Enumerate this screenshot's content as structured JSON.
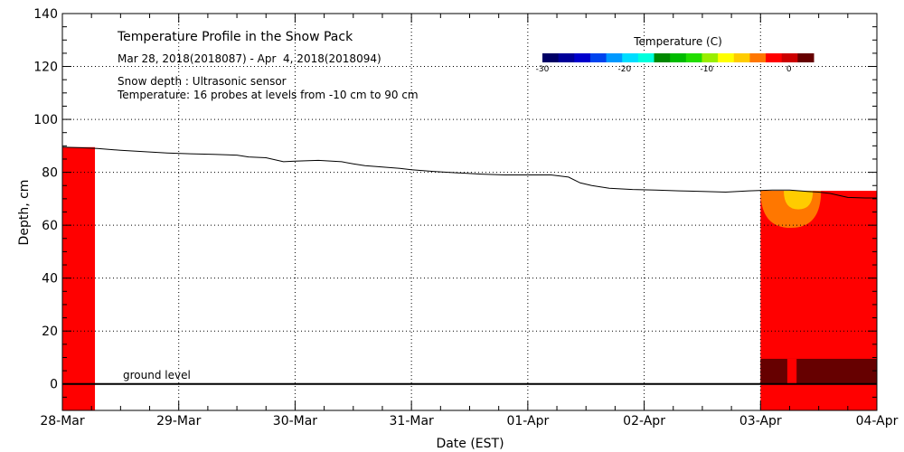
{
  "chart_data": {
    "type": "area",
    "title": "Temperature Profile in the Snow Pack",
    "subtitle": "Mar 28, 2018(2018087) - Apr  4, 2018(2018094)",
    "info_lines": [
      "Snow depth : Ultrasonic sensor",
      "Temperature: 16 probes at levels from -10 cm to 90 cm"
    ],
    "xlabel": "Date (EST)",
    "ylabel": "Depth, cm",
    "xlim": [
      0,
      7
    ],
    "ylim": [
      -10,
      140
    ],
    "x_ticks": [
      {
        "value": 0,
        "label": "28-Mar"
      },
      {
        "value": 1,
        "label": "29-Mar"
      },
      {
        "value": 2,
        "label": "30-Mar"
      },
      {
        "value": 3,
        "label": "31-Mar"
      },
      {
        "value": 4,
        "label": "01-Apr"
      },
      {
        "value": 5,
        "label": "02-Apr"
      },
      {
        "value": 6,
        "label": "03-Apr"
      },
      {
        "value": 7,
        "label": "04-Apr"
      }
    ],
    "y_ticks": [
      {
        "value": 0,
        "label": "0"
      },
      {
        "value": 20,
        "label": "20"
      },
      {
        "value": 40,
        "label": "40"
      },
      {
        "value": 60,
        "label": "60"
      },
      {
        "value": 80,
        "label": "80"
      },
      {
        "value": 100,
        "label": "100"
      },
      {
        "value": 120,
        "label": "120"
      },
      {
        "value": 140,
        "label": "140"
      }
    ],
    "grid": true,
    "ground_level": {
      "value": 0,
      "label": "ground level"
    },
    "legend": {
      "title": "Temperature (C)",
      "placement": "top-right",
      "range": [
        -30,
        3
      ],
      "ticks": [
        {
          "value": -30,
          "label": "-30"
        },
        {
          "value": -20,
          "label": "-20"
        },
        {
          "value": -10,
          "label": "-10"
        },
        {
          "value": 0,
          "label": "0"
        }
      ],
      "colors": [
        "#000066",
        "#000099",
        "#0000cc",
        "#0044ee",
        "#0099ff",
        "#00ddff",
        "#00ffdd",
        "#008800",
        "#00bb00",
        "#22dd00",
        "#99ee00",
        "#ffff00",
        "#ffcc00",
        "#ff7700",
        "#ff0000",
        "#cc0000",
        "#660000"
      ]
    },
    "snow_depth": {
      "x": [
        0,
        0.15,
        0.3,
        0.5,
        0.7,
        0.9,
        1.1,
        1.3,
        1.5,
        1.6,
        1.75,
        1.9,
        2.0,
        2.2,
        2.4,
        2.5,
        2.6,
        2.75,
        2.9,
        3.0,
        3.2,
        3.4,
        3.6,
        3.8,
        4.0,
        4.2,
        4.35,
        4.45,
        4.55,
        4.7,
        4.9,
        5.1,
        5.3,
        5.5,
        5.7,
        5.9,
        6.1,
        6.25,
        6.4,
        6.5,
        6.6,
        6.75,
        6.9,
        7.0
      ],
      "depth": [
        89.5,
        89.3,
        89,
        88.3,
        87.8,
        87.3,
        87,
        86.8,
        86.5,
        85.8,
        85.5,
        84,
        84.2,
        84.5,
        84,
        83.2,
        82.5,
        82,
        81.5,
        81,
        80.3,
        79.8,
        79.3,
        79,
        79,
        79,
        78.2,
        76,
        75,
        74,
        73.5,
        73.3,
        73,
        72.8,
        72.5,
        73,
        73.3,
        73.3,
        72.8,
        72.5,
        72,
        70.5,
        70.3,
        70.3
      ]
    },
    "temperature_regions": [
      {
        "name": "early-record",
        "x_range": [
          0,
          0.28
        ],
        "depth_range": [
          -10,
          89.5
        ],
        "temperature": 0,
        "color": "#ff0000"
      },
      {
        "name": "late-record",
        "x_range": [
          6.0,
          7.0
        ],
        "depth_range": [
          -10,
          73
        ],
        "temperature": 0,
        "color": "#ff0000"
      },
      {
        "name": "ground-warm",
        "x_range": [
          6.0,
          7.0
        ],
        "depth_range": [
          0,
          9.5
        ],
        "temperature": 3,
        "color": "#660000"
      },
      {
        "name": "surface-cold",
        "x_range": [
          6.0,
          6.52
        ],
        "depth_range": [
          59,
          73
        ],
        "temperature": -1,
        "color": "#ff7700"
      },
      {
        "name": "surface-coldest",
        "x_range": [
          6.2,
          6.45
        ],
        "depth_range": [
          66,
          73
        ],
        "temperature": -2,
        "color": "#ffcc00"
      }
    ]
  }
}
